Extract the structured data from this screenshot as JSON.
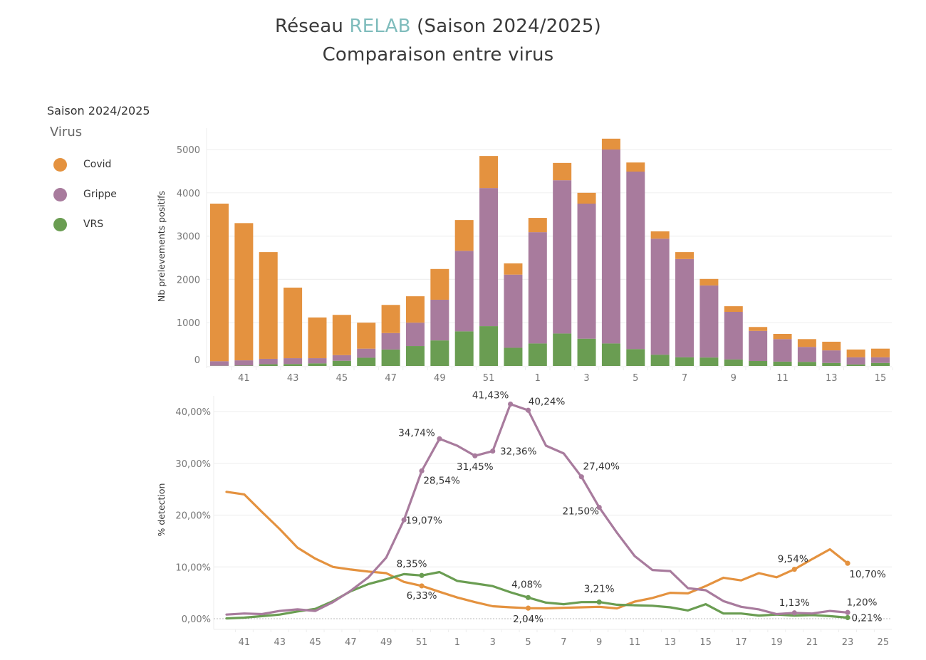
{
  "header": {
    "title_prefix": "Réseau ",
    "title_accent": "RELAB",
    "title_suffix": " (Saison 2024/2025)",
    "subtitle": "Comparaison entre virus"
  },
  "legend": {
    "season": "Saison 2024/2025",
    "title": "Virus",
    "items": [
      {
        "label": "Covid",
        "color": "#e4923f"
      },
      {
        "label": "Grippe",
        "color": "#a87b9d"
      },
      {
        "label": "VRS",
        "color": "#6a9d52"
      }
    ]
  },
  "chart_data": [
    {
      "type": "bar",
      "stacked": true,
      "title": "",
      "xlabel": "",
      "ylabel": "Nb prelevements positifs",
      "ylim": [
        0,
        5300
      ],
      "yticks": [
        0,
        1000,
        2000,
        3000,
        4000,
        5000
      ],
      "ytick_labels": [
        "0",
        "1000",
        "2000",
        "3000",
        "4000",
        "5000"
      ],
      "grid": true,
      "categories": [
        "40",
        "41",
        "42",
        "43",
        "44",
        "45",
        "46",
        "47",
        "48",
        "49",
        "50",
        "51",
        "52",
        "1",
        "2",
        "3",
        "4",
        "5",
        "6",
        "7",
        "8",
        "9",
        "10",
        "11",
        "12",
        "13",
        "14",
        "15"
      ],
      "xtick_labels": [
        "41",
        "43",
        "45",
        "47",
        "49",
        "51",
        "1",
        "3",
        "5",
        "7",
        "9",
        "11",
        "13",
        "15"
      ],
      "series": [
        {
          "name": "VRS",
          "color": "#6a9d52",
          "values": [
            5,
            10,
            40,
            45,
            60,
            120,
            190,
            380,
            460,
            590,
            800,
            920,
            420,
            520,
            750,
            630,
            520,
            390,
            260,
            200,
            195,
            150,
            115,
            100,
            95,
            70,
            35,
            70
          ]
        },
        {
          "name": "Grippe",
          "color": "#a87b9d",
          "values": [
            105,
            120,
            125,
            135,
            120,
            130,
            210,
            380,
            540,
            940,
            1860,
            3190,
            1690,
            2570,
            3540,
            3120,
            4480,
            4100,
            2680,
            2270,
            1665,
            1100,
            695,
            520,
            345,
            290,
            165,
            130
          ]
        },
        {
          "name": "Covid",
          "color": "#e4923f",
          "values": [
            3640,
            3170,
            2465,
            1630,
            940,
            930,
            600,
            650,
            610,
            710,
            710,
            740,
            260,
            330,
            400,
            250,
            250,
            210,
            170,
            160,
            150,
            130,
            90,
            120,
            180,
            200,
            180,
            200
          ]
        }
      ]
    },
    {
      "type": "line",
      "title": "",
      "xlabel": "",
      "ylabel": "% detection",
      "ylim": [
        -2,
        43
      ],
      "yticks": [
        0,
        10,
        20,
        30,
        40
      ],
      "ytick_labels": [
        "0,00%",
        "10,00%",
        "20,00%",
        "30,00%",
        "40,00%"
      ],
      "grid": true,
      "x": [
        "40",
        "41",
        "42",
        "43",
        "44",
        "45",
        "46",
        "47",
        "48",
        "49",
        "50",
        "51",
        "52",
        "1",
        "2",
        "3",
        "4",
        "5",
        "6",
        "7",
        "8",
        "9",
        "10",
        "11",
        "12",
        "13",
        "14",
        "15",
        "16",
        "17",
        "18",
        "19",
        "20",
        "21",
        "22",
        "23"
      ],
      "xtick_labels": [
        "41",
        "43",
        "45",
        "47",
        "49",
        "51",
        "1",
        "3",
        "5",
        "7",
        "9",
        "11",
        "13",
        "15",
        "17",
        "19",
        "21",
        "23",
        "25"
      ],
      "series": [
        {
          "name": "Covid",
          "color": "#e4923f",
          "values": [
            24.5,
            24.0,
            20.6,
            17.3,
            13.7,
            11.6,
            10.0,
            9.5,
            9.1,
            8.8,
            7.1,
            6.33,
            5.2,
            4.1,
            3.2,
            2.4,
            2.2,
            2.04,
            2.0,
            2.1,
            2.2,
            2.3,
            2.0,
            3.3,
            4.0,
            5.0,
            4.9,
            6.3,
            7.9,
            7.4,
            8.8,
            8.0,
            9.54,
            11.5,
            13.4,
            10.7
          ],
          "labels": [
            {
              "x": "51",
              "text": "6,33%"
            },
            {
              "x": "5",
              "text": "2,04%"
            },
            {
              "x": "20",
              "text": "9,54%"
            },
            {
              "x": "23",
              "text": "10,70%"
            }
          ]
        },
        {
          "name": "Grippe",
          "color": "#a87b9d",
          "values": [
            0.8,
            1.0,
            0.9,
            1.5,
            1.8,
            1.5,
            3.2,
            5.4,
            8.0,
            11.8,
            19.07,
            28.54,
            34.74,
            33.4,
            31.45,
            32.36,
            41.43,
            40.24,
            33.4,
            31.9,
            27.4,
            21.5,
            16.6,
            12.1,
            9.4,
            9.2,
            5.9,
            5.5,
            3.4,
            2.3,
            1.8,
            0.9,
            1.13,
            1.0,
            1.5,
            1.2
          ],
          "labels": [
            {
              "x": "50",
              "text": "19,07%"
            },
            {
              "x": "51",
              "text": "28,54%"
            },
            {
              "x": "52",
              "text": "34,74%"
            },
            {
              "x": "2",
              "text": "31,45%"
            },
            {
              "x": "3",
              "text": "32,36%"
            },
            {
              "x": "4",
              "text": "41,43%"
            },
            {
              "x": "5",
              "text": "40,24%"
            },
            {
              "x": "8",
              "text": "27,40%"
            },
            {
              "x": "9",
              "text": "21,50%"
            },
            {
              "x": "20",
              "text": "1,13%"
            },
            {
              "x": "23",
              "text": "1,20%"
            }
          ]
        },
        {
          "name": "VRS",
          "color": "#6a9d52",
          "values": [
            0.05,
            0.2,
            0.5,
            0.8,
            1.4,
            1.9,
            3.4,
            5.3,
            6.7,
            7.6,
            8.6,
            8.35,
            9.0,
            7.3,
            6.8,
            6.3,
            5.1,
            4.08,
            3.1,
            2.8,
            3.2,
            3.21,
            2.7,
            2.6,
            2.5,
            2.2,
            1.6,
            2.8,
            1.0,
            1.0,
            0.6,
            0.8,
            0.6,
            0.7,
            0.5,
            0.21
          ],
          "labels": [
            {
              "x": "51",
              "text": "8,35%"
            },
            {
              "x": "5",
              "text": "4,08%"
            },
            {
              "x": "9",
              "text": "3,21%"
            },
            {
              "x": "23",
              "text": "0,21%"
            }
          ]
        }
      ]
    }
  ]
}
